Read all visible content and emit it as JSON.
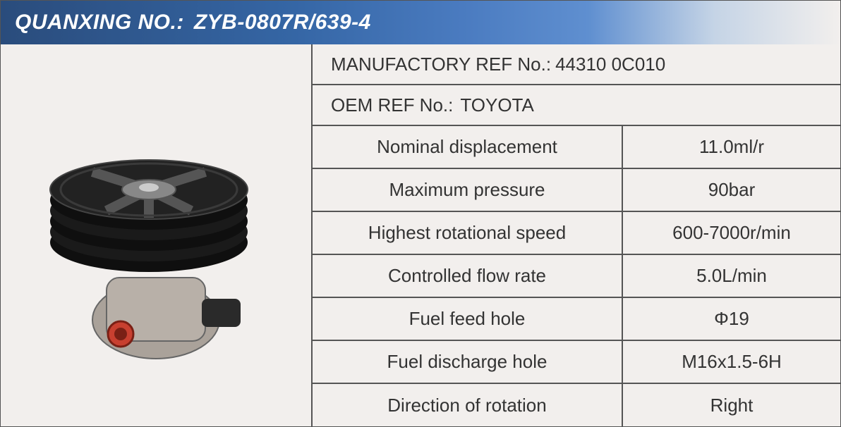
{
  "header": {
    "label": "QUANXING NO.:",
    "value": "ZYB-0807R/639-4"
  },
  "refs": {
    "manufactory_label": "MANUFACTORY REF No.:",
    "manufactory_value": "44310 0C010",
    "oem_label": "OEM REF No.:",
    "oem_value": "TOYOTA"
  },
  "specs": [
    {
      "param": "Nominal displacement",
      "value": "11.0ml/r"
    },
    {
      "param": "Maximum pressure",
      "value": "90bar"
    },
    {
      "param": "Highest rotational speed",
      "value": "600-7000r/min"
    },
    {
      "param": "Controlled flow rate",
      "value": "5.0L/min"
    },
    {
      "param": "Fuel feed hole",
      "value": "Φ19"
    },
    {
      "param": "Fuel discharge hole",
      "value": "M16x1.5-6H"
    },
    {
      "param": "Direction of rotation",
      "value": "Right"
    }
  ],
  "colors": {
    "banner_start": "#2a4c7c",
    "banner_mid": "#4a7bc0",
    "border": "#555555",
    "bg": "#f2efed",
    "text": "#333333"
  },
  "illustration": {
    "pulley_color": "#1a1a1a",
    "body_color": "#b8b0a8",
    "port_color": "#c84030"
  }
}
